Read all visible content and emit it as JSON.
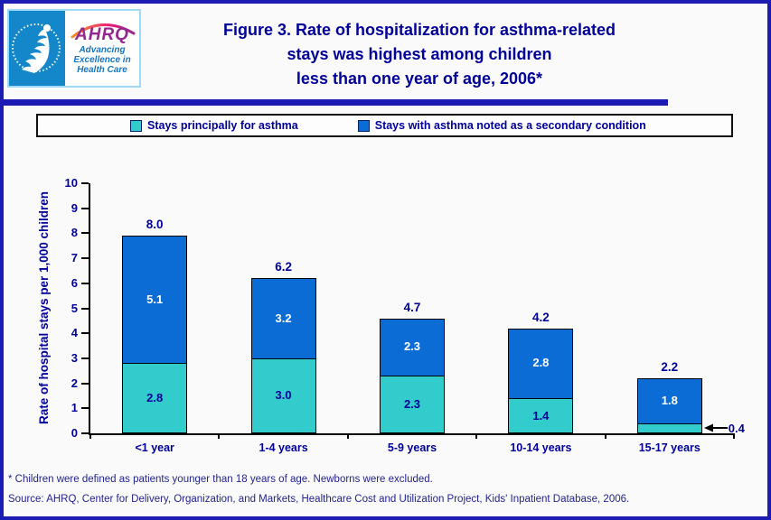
{
  "header": {
    "logo": {
      "name": "AHRQ",
      "tagline_lines": [
        "Advancing",
        "Excellence in",
        "Health Care"
      ],
      "seal": "hhs-department-of-health-and-human-services"
    },
    "title_lines": [
      "Figure 3. Rate of hospitalization for asthma-related",
      "stays was highest among children",
      "less than one year of age, 2006*"
    ]
  },
  "legend": {
    "items": [
      {
        "label": "Stays principally for asthma",
        "color": "#33CCCC"
      },
      {
        "label": "Stays with asthma noted as a secondary condition",
        "color": "#0B6CD6"
      }
    ]
  },
  "chart_data": {
    "type": "bar",
    "stacked": true,
    "title": "Rate of hospitalization for asthma-related stays by age group, 2006",
    "categories": [
      "<1 year",
      "1-4 years",
      "5-9 years",
      "10-14 years",
      "15-17 years"
    ],
    "series": [
      {
        "name": "Stays principally for asthma",
        "color": "#33CCCC",
        "values": [
          2.8,
          3.0,
          2.3,
          1.4,
          0.4
        ]
      },
      {
        "name": "Stays with asthma noted as a secondary condition",
        "color": "#0B6CD6",
        "values": [
          5.1,
          3.2,
          2.3,
          2.8,
          1.8
        ]
      }
    ],
    "totals": [
      8.0,
      6.2,
      4.7,
      4.2,
      2.2
    ],
    "xlabel": "",
    "ylabel": "Rate of hospital stays per 1,000 children",
    "ylim": [
      0,
      10
    ],
    "yticks": [
      0,
      1,
      2,
      3,
      4,
      5,
      6,
      7,
      8,
      9,
      10
    ],
    "grid": false,
    "legend_position": "top",
    "callout": {
      "category": "15-17 years",
      "series": "Stays principally for asthma",
      "value": "0.4"
    }
  },
  "footnotes": [
    "* Children were defined as patients younger than 18 years of age.  Newborns were excluded.",
    "Source: AHRQ, Center for Delivery, Organization, and Markets, Healthcare Cost and Utilization Project, Kids' Inpatient Database, 2006."
  ],
  "colors": {
    "navy_text": "#000099",
    "page_border": "#1C1CB4",
    "footnote_text": "#24248F",
    "axis": "#000000",
    "background": "#FAFAFA",
    "ahrq_purple": "#94278F",
    "hhs_blue": "#1487CB",
    "tagline_blue": "#1B75BC"
  }
}
